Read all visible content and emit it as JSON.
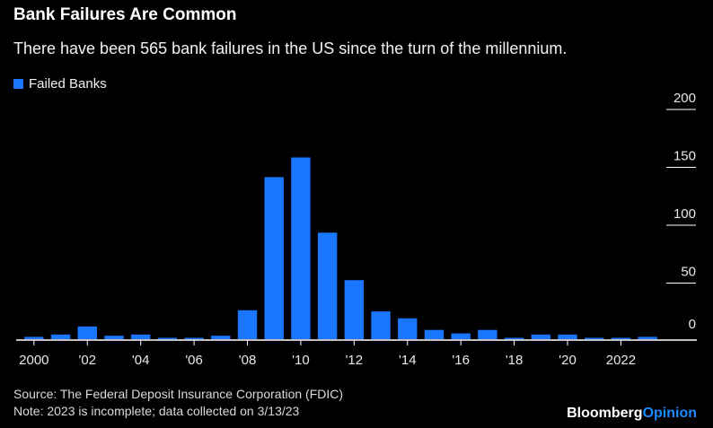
{
  "header": {
    "title": "Bank Failures Are Common",
    "subtitle": "There have been 565 bank failures in the US since the turn of the millennium."
  },
  "footer": {
    "source": "Source: The Federal Deposit Insurance Corporation (FDIC)",
    "note": "Note: 2023 is incomplete; data collected on 3/13/23",
    "brand_main": "Bloomberg",
    "brand_accent": "Opinion"
  },
  "colors": {
    "bar": "#1a75ff",
    "background": "#000000",
    "axis": "#ffffff",
    "grid": "#ffffff"
  },
  "chart_data": {
    "type": "bar",
    "categories": [
      "2000",
      "2001",
      "2002",
      "2003",
      "2004",
      "2005",
      "2006",
      "2007",
      "2008",
      "2009",
      "2010",
      "2011",
      "2012",
      "2013",
      "2014",
      "2015",
      "2016",
      "2017",
      "2018",
      "2019",
      "2020",
      "2021",
      "2022",
      "2023"
    ],
    "series": [
      {
        "name": "Failed Banks",
        "values": [
          2,
          4,
          11,
          3,
          4,
          0,
          0,
          3,
          25,
          140,
          157,
          92,
          51,
          24,
          18,
          8,
          5,
          8,
          0,
          4,
          4,
          0,
          0,
          2
        ]
      }
    ],
    "x_tick_labels": [
      {
        "category": "2000",
        "label": "2000"
      },
      {
        "category": "2002",
        "label": "'02"
      },
      {
        "category": "2004",
        "label": "'04"
      },
      {
        "category": "2006",
        "label": "'06"
      },
      {
        "category": "2008",
        "label": "'08"
      },
      {
        "category": "2010",
        "label": "'10"
      },
      {
        "category": "2012",
        "label": "'12"
      },
      {
        "category": "2014",
        "label": "'14"
      },
      {
        "category": "2016",
        "label": "'16"
      },
      {
        "category": "2018",
        "label": "'18"
      },
      {
        "category": "2020",
        "label": "'20"
      },
      {
        "category": "2022",
        "label": "2022"
      }
    ],
    "y_ticks": [
      0,
      50,
      100,
      150,
      200
    ],
    "ylim": [
      0,
      200
    ],
    "y_axis_position": "right",
    "grid": true,
    "legend_position": "top-left"
  }
}
